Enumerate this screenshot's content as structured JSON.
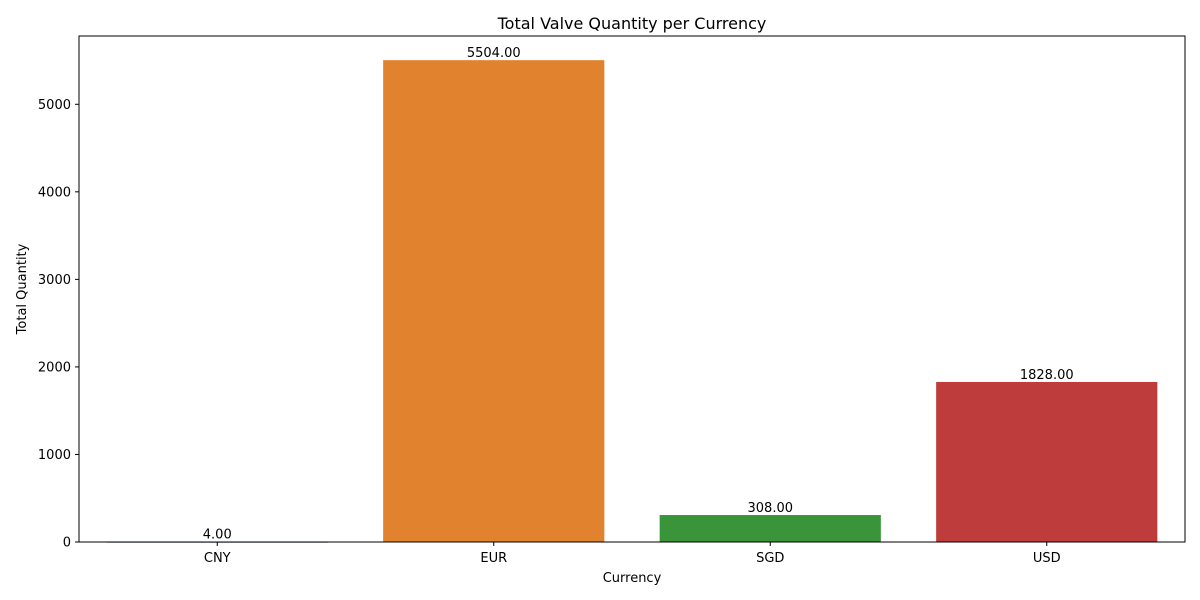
{
  "chart_data": {
    "type": "bar",
    "title": "Total Valve Quantity per Currency",
    "xlabel": "Currency",
    "ylabel": "Total Quantity",
    "categories": [
      "CNY",
      "EUR",
      "SGD",
      "USD"
    ],
    "values": [
      4,
      5504,
      308,
      1828
    ],
    "data_labels": [
      "4.00",
      "5504.00",
      "308.00",
      "1828.00"
    ],
    "colors": [
      "#3a5f8f",
      "#e0822e",
      "#3a943a",
      "#be3c3c"
    ],
    "ylim": [
      0,
      5780
    ],
    "yticks": [
      0,
      1000,
      2000,
      3000,
      4000,
      5000
    ],
    "ytick_labels": [
      "0",
      "1000",
      "2000",
      "3000",
      "4000",
      "5000"
    ],
    "grid": false,
    "legend": "none"
  }
}
